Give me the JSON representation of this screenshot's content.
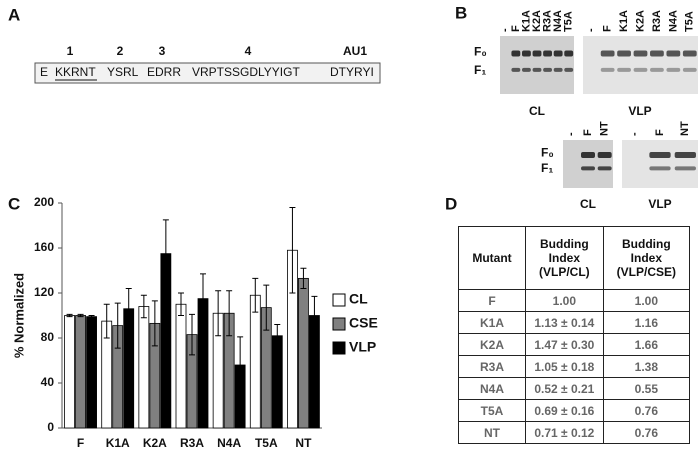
{
  "panel_a": {
    "label": "A",
    "region_numbers": [
      "1",
      "2",
      "3",
      "4",
      "AU1"
    ],
    "sequence": [
      "E",
      "KKRNT",
      "YSRL",
      "EDRR",
      "VRPTSSGDLYYIGT",
      "DTYRYI"
    ]
  },
  "panel_b": {
    "label": "B",
    "top": {
      "lanes": [
        "-",
        "F",
        "K1A",
        "K2A",
        "R3A",
        "N4A",
        "T5A"
      ],
      "bands": [
        "F₀",
        "F₁"
      ],
      "blots": [
        "CL",
        "VLP"
      ]
    },
    "bottom": {
      "lanes": [
        "-",
        "F",
        "NT"
      ],
      "bands": [
        "F₀",
        "F₁"
      ],
      "blots": [
        "CL",
        "VLP"
      ]
    }
  },
  "panel_c": {
    "label": "C"
  },
  "chart_data": {
    "type": "bar",
    "y_label": "% Normalized",
    "categories": [
      "F",
      "K1A",
      "K2A",
      "R3A",
      "N4A",
      "T5A",
      "NT"
    ],
    "series": [
      {
        "name": "CL",
        "color": "#ffffff",
        "values": [
          100,
          95,
          108,
          110,
          102,
          118,
          158
        ],
        "errors": [
          1,
          15,
          10,
          10,
          20,
          15,
          38
        ]
      },
      {
        "name": "CSE",
        "color": "#808080",
        "values": [
          100,
          91,
          93,
          83,
          102,
          107,
          133
        ],
        "errors": [
          1,
          20,
          20,
          18,
          20,
          20,
          9
        ]
      },
      {
        "name": "VLP",
        "color": "#000000",
        "values": [
          99,
          106,
          155,
          115,
          56,
          82,
          100
        ],
        "errors": [
          1,
          18,
          30,
          22,
          25,
          10,
          17
        ]
      }
    ],
    "ylim": [
      0,
      200
    ],
    "yticks": [
      0,
      40,
      80,
      120,
      160,
      200
    ],
    "legend": "right"
  },
  "panel_d": {
    "label": "D"
  },
  "table": {
    "header": [
      "Mutant",
      "Budding Index (VLP/CL)",
      "Budding Index (VLP/CSE)"
    ],
    "rows": [
      [
        "F",
        "1.00",
        "1.00"
      ],
      [
        "K1A",
        "1.13 ± 0.14",
        "1.16"
      ],
      [
        "K2A",
        "1.47 ± 0.30",
        "1.66"
      ],
      [
        "R3A",
        "1.05 ± 0.18",
        "1.38"
      ],
      [
        "N4A",
        "0.52 ± 0.21",
        "0.55"
      ],
      [
        "T5A",
        "0.69 ± 0.16",
        "0.76"
      ],
      [
        "NT",
        "0.71 ± 0.12",
        "0.76"
      ]
    ]
  }
}
